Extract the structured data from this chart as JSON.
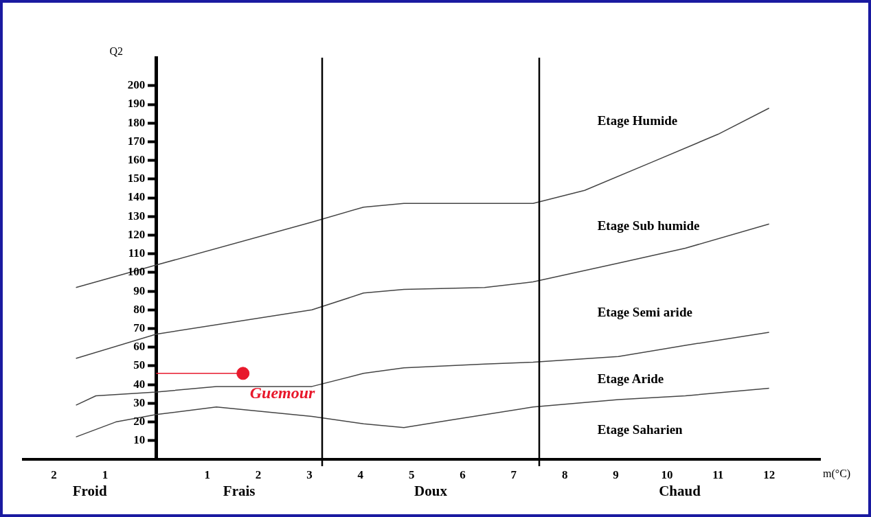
{
  "chart_data": {
    "type": "line",
    "xlabel": "m(°C)",
    "ylabel": "Q2",
    "xlim": [
      -2.6,
      13
    ],
    "ylim": [
      0,
      215
    ],
    "xticks": [
      {
        "value": -2,
        "label": "2"
      },
      {
        "value": -1,
        "label": "1"
      },
      1,
      2,
      3,
      4,
      5,
      6,
      7,
      8,
      9,
      10,
      11,
      12
    ],
    "yticks": [
      10,
      20,
      30,
      40,
      50,
      60,
      70,
      80,
      90,
      100,
      110,
      120,
      130,
      140,
      150,
      160,
      170,
      180,
      190,
      200
    ],
    "grid": false,
    "legend": false,
    "marker": "none",
    "line_style": "solid",
    "series": [
      {
        "color": "#444444",
        "x": [
          -1.57,
          0,
          3.05,
          4.06,
          4.85,
          6.43,
          7.38,
          8.39,
          9.7,
          11.0,
          12
        ],
        "values": [
          92,
          104,
          127,
          135,
          137,
          137,
          137,
          144,
          159,
          174,
          188
        ]
      },
      {
        "color": "#444444",
        "x": [
          -1.57,
          0,
          3.05,
          4.06,
          4.85,
          6.43,
          7.38,
          9.05,
          10.36,
          12
        ],
        "values": [
          54,
          67,
          80,
          89,
          91,
          92,
          95,
          105,
          113,
          126
        ]
      },
      {
        "color": "#444444",
        "x": [
          -1.57,
          -1.18,
          0,
          1.18,
          3.05,
          4.06,
          4.85,
          6.43,
          7.38,
          9.05,
          10.36,
          12
        ],
        "values": [
          29,
          34,
          36,
          39,
          39,
          46,
          49,
          51,
          52,
          55,
          61,
          68
        ]
      },
      {
        "color": "#444444",
        "x": [
          -1.57,
          -0.79,
          0,
          1.18,
          3.05,
          4.06,
          4.85,
          5.77,
          7.38,
          9.05,
          10.36,
          12
        ],
        "values": [
          12,
          20,
          24,
          28,
          23,
          19,
          17,
          21,
          28,
          32,
          34,
          38
        ]
      },
      {
        "color": "#e8192c",
        "x": [
          0,
          1.7
        ],
        "values": [
          46,
          46
        ]
      },
      {
        "type": "scatter",
        "name": "Guemour",
        "color": "#e8192c",
        "x": [
          1.7
        ],
        "values": [
          46
        ],
        "marker": "circle"
      }
    ],
    "ref_lines": [
      {
        "axis": "x",
        "value": 3.25,
        "label": null
      },
      {
        "axis": "x",
        "value": 7.5,
        "label": null
      }
    ],
    "annotations": [
      "Etage Humide",
      "Etage Sub humide",
      "Etage Semi aride",
      "Etage Aride",
      "Etage Saharien",
      "Froid",
      "Frais",
      "Doux",
      "Chaud"
    ]
  }
}
